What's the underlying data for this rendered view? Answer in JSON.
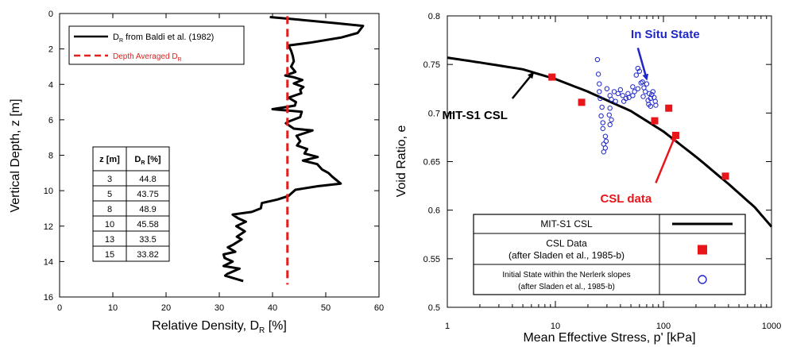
{
  "chart_data": [
    {
      "type": "line",
      "xlabel": "Relative Density, D",
      "xlabel_sub": "R",
      "xlabel_suffix": " [%]",
      "ylabel": "Vertical Depth, z [m]",
      "xlim": [
        0,
        60
      ],
      "ylim": [
        16,
        0
      ],
      "y_inverted": true,
      "grid": false,
      "xticks": [
        0,
        10,
        20,
        30,
        40,
        50,
        60
      ],
      "xtick_labels": [
        "0",
        "10",
        "20",
        "30",
        "40",
        "50",
        "60"
      ],
      "yticks": [
        0,
        2,
        4,
        6,
        8,
        10,
        12,
        14,
        16
      ],
      "ytick_labels": [
        "0",
        "2",
        "4",
        "6",
        "8",
        "10",
        "12",
        "14",
        "16"
      ],
      "legend": {
        "placement": "top-left",
        "entries": [
          {
            "text": "D",
            "sub": "R",
            "suffix": " from Baldi et al. (1982)",
            "color": "#000000",
            "style": "solid",
            "text_color": "#000000"
          },
          {
            "text": "Depth Averaged D",
            "sub": "R",
            "suffix": "",
            "color": "#e0201f",
            "style": "dashed",
            "text_color": "#e0201f"
          }
        ]
      },
      "series": [
        {
          "key": "profile",
          "color": "#000000",
          "points": [
            [
              39.5,
              0.2
            ],
            [
              45,
              0.35
            ],
            [
              52,
              0.55
            ],
            [
              57,
              0.7
            ],
            [
              56,
              1.1
            ],
            [
              53,
              1.35
            ],
            [
              47,
              1.65
            ],
            [
              43,
              1.8
            ],
            [
              43.5,
              2.1
            ],
            [
              43.8,
              2.4
            ],
            [
              44,
              2.7
            ],
            [
              43.5,
              3.0
            ],
            [
              44.3,
              3.3
            ],
            [
              42.4,
              3.5
            ],
            [
              44,
              3.6
            ],
            [
              45.6,
              3.75
            ],
            [
              44,
              3.95
            ],
            [
              45.8,
              4.15
            ],
            [
              45.2,
              4.3
            ],
            [
              45.4,
              4.5
            ],
            [
              43,
              4.75
            ],
            [
              44.4,
              5.0
            ],
            [
              44.2,
              5.2
            ],
            [
              40,
              5.4
            ],
            [
              43.8,
              5.5
            ],
            [
              45.5,
              5.55
            ],
            [
              45.2,
              5.85
            ],
            [
              43,
              6.1
            ],
            [
              42.5,
              6.2
            ],
            [
              44,
              6.5
            ],
            [
              47.5,
              6.6
            ],
            [
              44.5,
              6.9
            ],
            [
              45.2,
              7.2
            ],
            [
              44.6,
              7.45
            ],
            [
              46.5,
              7.65
            ],
            [
              46,
              7.9
            ],
            [
              48.5,
              8.1
            ],
            [
              45.7,
              8.3
            ],
            [
              48.4,
              8.5
            ],
            [
              49.3,
              8.8
            ],
            [
              50.5,
              9.0
            ],
            [
              51.2,
              9.2
            ],
            [
              52.8,
              9.6
            ],
            [
              48.5,
              9.75
            ],
            [
              44.3,
              9.95
            ],
            [
              43,
              10.3
            ],
            [
              40.9,
              10.5
            ],
            [
              38,
              10.7
            ],
            [
              37.8,
              11.0
            ],
            [
              36.1,
              11.2
            ],
            [
              32.5,
              11.35
            ],
            [
              33.5,
              11.55
            ],
            [
              35,
              11.75
            ],
            [
              33.2,
              12.0
            ],
            [
              34.8,
              12.3
            ],
            [
              33.3,
              12.6
            ],
            [
              34.2,
              12.75
            ],
            [
              32.6,
              13.05
            ],
            [
              31.6,
              13.2
            ],
            [
              33,
              13.45
            ],
            [
              30.8,
              13.6
            ],
            [
              31,
              13.8
            ],
            [
              32.5,
              14.0
            ],
            [
              30.8,
              14.25
            ],
            [
              33.8,
              14.4
            ],
            [
              31.5,
              14.7
            ],
            [
              31.1,
              14.8
            ],
            [
              34.5,
              15.1
            ]
          ]
        },
        {
          "key": "average",
          "color": "#e0201f",
          "points": [
            [
              42.8,
              0.15
            ],
            [
              42.8,
              15.3
            ]
          ]
        }
      ],
      "table": {
        "headers": [
          {
            "text": "z [m]",
            "sub": ""
          },
          {
            "text": "D",
            "sub": "R",
            "suffix": " [%]"
          }
        ],
        "rows": [
          [
            "3",
            "44.8"
          ],
          [
            "5",
            "43.75"
          ],
          [
            "8",
            "48.9"
          ],
          [
            "10",
            "45.58"
          ],
          [
            "13",
            "33.5"
          ],
          [
            "15",
            "33.82"
          ]
        ]
      }
    },
    {
      "type": "scatter",
      "xlabel": "Mean Effective Stress, p' [kPa]",
      "ylabel": "Void Ratio, e",
      "x_scale": "log",
      "xlim": [
        1,
        1000
      ],
      "ylim": [
        0.5,
        0.8
      ],
      "grid": false,
      "xticks": [
        1,
        10,
        100,
        1000
      ],
      "xtick_labels": [
        "1",
        "10",
        "100",
        "1000"
      ],
      "yticks": [
        0.5,
        0.55,
        0.6,
        0.65,
        0.7,
        0.75,
        0.8
      ],
      "ytick_labels": [
        "0.5",
        "0.55",
        "0.6",
        "0.65",
        "0.7",
        "0.75",
        "0.8"
      ],
      "csl": {
        "name": "MIT-S1 CSL",
        "color": "#000000",
        "points": [
          [
            1,
            0.757
          ],
          [
            2,
            0.752
          ],
          [
            5,
            0.745
          ],
          [
            10,
            0.735
          ],
          [
            20,
            0.722
          ],
          [
            50,
            0.702
          ],
          [
            100,
            0.681
          ],
          [
            200,
            0.655
          ],
          [
            400,
            0.627
          ],
          [
            700,
            0.603
          ],
          [
            1000,
            0.583
          ]
        ]
      },
      "csl_data": {
        "name": "CSL Data",
        "color": "#e8151b",
        "points": [
          [
            9.3,
            0.737
          ],
          [
            17.5,
            0.711
          ],
          [
            83,
            0.692
          ],
          [
            112,
            0.705
          ],
          [
            130,
            0.677
          ],
          [
            375,
            0.635
          ]
        ]
      },
      "in_situ": {
        "name": "Initial State within the Nerlerk slopes",
        "color": "#1f27c9",
        "points": [
          [
            24.5,
            0.755
          ],
          [
            25,
            0.74
          ],
          [
            25.5,
            0.73
          ],
          [
            25.5,
            0.722
          ],
          [
            26,
            0.715
          ],
          [
            27,
            0.706
          ],
          [
            26.5,
            0.697
          ],
          [
            27.5,
            0.69
          ],
          [
            27.5,
            0.684
          ],
          [
            29,
            0.676
          ],
          [
            29.5,
            0.671
          ],
          [
            28,
            0.668
          ],
          [
            29,
            0.664
          ],
          [
            28,
            0.66
          ],
          [
            30,
            0.725
          ],
          [
            32,
            0.718
          ],
          [
            33,
            0.714
          ],
          [
            32,
            0.705
          ],
          [
            31.5,
            0.698
          ],
          [
            33,
            0.693
          ],
          [
            32,
            0.688
          ],
          [
            35,
            0.722
          ],
          [
            38,
            0.72
          ],
          [
            40,
            0.724
          ],
          [
            42,
            0.718
          ],
          [
            43,
            0.712
          ],
          [
            47,
            0.72
          ],
          [
            48,
            0.716
          ],
          [
            52,
            0.718
          ],
          [
            54,
            0.722
          ],
          [
            52,
            0.727
          ],
          [
            56,
            0.739
          ],
          [
            58,
            0.746
          ],
          [
            60,
            0.743
          ],
          [
            62,
            0.731
          ],
          [
            64,
            0.732
          ],
          [
            66,
            0.726
          ],
          [
            68,
            0.722
          ],
          [
            70,
            0.73
          ],
          [
            74,
            0.72
          ],
          [
            76,
            0.715
          ],
          [
            72,
            0.713
          ],
          [
            78,
            0.719
          ],
          [
            80,
            0.722
          ],
          [
            82,
            0.716
          ],
          [
            84,
            0.712
          ],
          [
            85,
            0.708
          ],
          [
            73,
            0.709
          ],
          [
            76,
            0.707
          ],
          [
            65,
            0.717
          ],
          [
            58,
            0.725
          ],
          [
            45,
            0.715
          ],
          [
            36,
            0.712
          ]
        ]
      },
      "annotations": [
        {
          "text": "In Situ State",
          "color": "#1f27c9",
          "at": [
            50,
            0.782
          ],
          "arrow_to": [
            70,
            0.735
          ]
        },
        {
          "text": "MIT-S1 CSL",
          "color": "#000000",
          "at": [
            1.7,
            0.698
          ],
          "arrow_to": [
            6.2,
            0.741
          ]
        },
        {
          "text": "CSL data",
          "color": "#e8151b",
          "at": [
            45,
            0.615
          ],
          "arrow_to": [
            128,
            0.676
          ]
        }
      ],
      "legend": {
        "placement": "bottom-center",
        "rows": [
          {
            "lines": [
              "MIT-S1 CSL"
            ],
            "symbol": "line",
            "color": "#000000"
          },
          {
            "lines": [
              "CSL Data",
              "(after Sladen et al., 1985-b)"
            ],
            "symbol": "square",
            "color": "#e8151b"
          },
          {
            "lines": [
              "Initial State within the Nerlerk slopes",
              "(after Sladen et al., 1985-b)"
            ],
            "symbol": "circle",
            "color": "#1f27c9"
          }
        ]
      }
    }
  ]
}
